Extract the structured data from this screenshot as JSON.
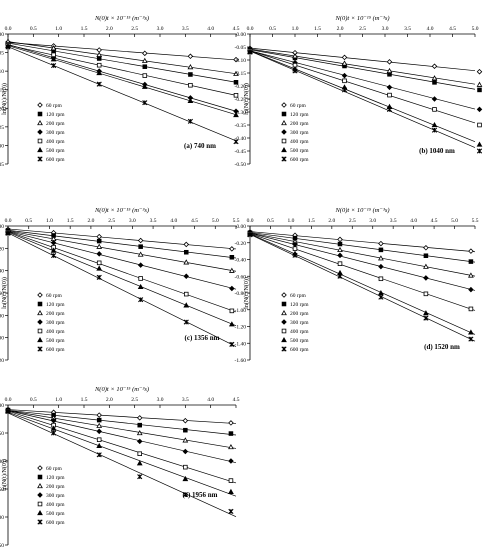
{
  "chart_data": [
    {
      "type": "scatter",
      "title": "(a) 740 nm",
      "xlabel": "N(0)t × 10⁻¹⁵ (m⁻³s)",
      "ylabel": "ln(N(t)/N(0))",
      "xlim": [
        0,
        4.5
      ],
      "ylim": [
        -0.35,
        0
      ],
      "xticks": [
        "0.0",
        "0.5",
        "1.0",
        "1.5",
        "2.0",
        "2.5",
        "3.0",
        "3.5",
        "4.0",
        "4.5"
      ],
      "yticks": [
        "0.00",
        "-0.05",
        "-0.10",
        "-0.15",
        "-0.20",
        "-0.25",
        "-0.30",
        "-0.35"
      ],
      "legend_position": "bottom-left",
      "series": [
        {
          "name": "60 rpm",
          "marker": "diamond-open",
          "x": [
            0.0,
            0.9,
            1.8,
            2.7,
            3.6,
            4.5
          ],
          "y": [
            -0.022,
            -0.032,
            -0.043,
            -0.052,
            -0.06,
            -0.069
          ]
        },
        {
          "name": "120 rpm",
          "marker": "square-filled",
          "x": [
            0.0,
            0.9,
            1.8,
            2.7,
            3.6,
            4.5
          ],
          "y": [
            -0.025,
            -0.045,
            -0.066,
            -0.088,
            -0.109,
            -0.13
          ]
        },
        {
          "name": "200 rpm",
          "marker": "triangle-open",
          "x": [
            0.0,
            0.9,
            1.8,
            2.7,
            3.6,
            4.5
          ],
          "y": [
            -0.02,
            -0.038,
            -0.056,
            -0.072,
            -0.089,
            -0.107
          ]
        },
        {
          "name": "300 rpm",
          "marker": "diamond-filled",
          "x": [
            0.0,
            0.9,
            1.8,
            2.7,
            3.6,
            4.5
          ],
          "y": [
            -0.028,
            -0.064,
            -0.1,
            -0.136,
            -0.172,
            -0.208
          ]
        },
        {
          "name": "400 rpm",
          "marker": "square-open",
          "x": [
            0.0,
            0.9,
            1.8,
            2.7,
            3.6,
            4.5
          ],
          "y": [
            -0.03,
            -0.056,
            -0.084,
            -0.112,
            -0.138,
            -0.165
          ]
        },
        {
          "name": "500 rpm",
          "marker": "triangle-filled",
          "x": [
            0.0,
            0.9,
            1.8,
            2.7,
            3.6,
            4.5
          ],
          "y": [
            -0.032,
            -0.068,
            -0.105,
            -0.142,
            -0.18,
            -0.218
          ]
        },
        {
          "name": "600 rpm",
          "marker": "x",
          "x": [
            0.0,
            0.9,
            1.8,
            2.7,
            3.6,
            4.5
          ],
          "y": [
            -0.035,
            -0.085,
            -0.135,
            -0.185,
            -0.235,
            -0.29
          ]
        }
      ]
    },
    {
      "type": "scatter",
      "title": "(b) 1040 nm",
      "xlabel": "N(0)t × 10⁻¹⁵ (m⁻³s)",
      "ylabel": "ln(N(t)/N(0))",
      "xlim": [
        0,
        5.0
      ],
      "ylim": [
        -0.5,
        0
      ],
      "xticks": [
        "0.0",
        "0.5",
        "1.0",
        "1.5",
        "2.0",
        "2.5",
        "3.0",
        "3.5",
        "4.0",
        "4.5",
        "5.0"
      ],
      "yticks": [
        "0.00",
        "-0.05",
        "-0.10",
        "-0.15",
        "-0.20",
        "-0.25",
        "-0.30",
        "-0.35",
        "-0.40",
        "-0.45",
        "-0.50"
      ],
      "legend_position": "bottom-left",
      "series": [
        {
          "name": "60 rpm",
          "marker": "diamond-open",
          "x": [
            0.0,
            1.0,
            2.1,
            3.1,
            4.1,
            5.1
          ],
          "y": [
            -0.055,
            -0.072,
            -0.09,
            -0.107,
            -0.124,
            -0.145
          ]
        },
        {
          "name": "120 rpm",
          "marker": "square-filled",
          "x": [
            0.0,
            1.0,
            2.1,
            3.1,
            4.1,
            5.1
          ],
          "y": [
            -0.06,
            -0.092,
            -0.123,
            -0.155,
            -0.186,
            -0.215
          ]
        },
        {
          "name": "200 rpm",
          "marker": "triangle-open",
          "x": [
            0.0,
            1.0,
            2.1,
            3.1,
            4.1,
            5.1
          ],
          "y": [
            -0.058,
            -0.085,
            -0.113,
            -0.142,
            -0.17,
            -0.195
          ]
        },
        {
          "name": "300 rpm",
          "marker": "diamond-filled",
          "x": [
            0.0,
            1.0,
            2.1,
            3.1,
            4.1,
            5.1
          ],
          "y": [
            -0.062,
            -0.11,
            -0.16,
            -0.205,
            -0.25,
            -0.29
          ]
        },
        {
          "name": "400 rpm",
          "marker": "square-open",
          "x": [
            0.0,
            1.0,
            2.1,
            3.1,
            4.1,
            5.1
          ],
          "y": [
            -0.065,
            -0.12,
            -0.18,
            -0.235,
            -0.29,
            -0.35
          ]
        },
        {
          "name": "500 rpm",
          "marker": "triangle-filled",
          "x": [
            0.0,
            1.0,
            2.1,
            3.1,
            4.1,
            5.1
          ],
          "y": [
            -0.068,
            -0.135,
            -0.205,
            -0.28,
            -0.35,
            -0.425
          ]
        },
        {
          "name": "600 rpm",
          "marker": "x",
          "x": [
            0.0,
            1.0,
            2.1,
            3.1,
            4.1,
            5.1
          ],
          "y": [
            -0.07,
            -0.142,
            -0.215,
            -0.29,
            -0.37,
            -0.45
          ]
        }
      ]
    },
    {
      "type": "scatter",
      "title": "(c) 1356 nm",
      "xlabel": "N(0)t × 10⁻¹⁵ (m⁻³s)",
      "ylabel": "ln(N(t)/N(0))",
      "xlim": [
        0,
        5.5
      ],
      "ylim": [
        -1.2,
        0
      ],
      "xticks": [
        "0.0",
        "0.5",
        "1.0",
        "1.5",
        "2.0",
        "2.5",
        "3.0",
        "3.5",
        "4.0",
        "4.5",
        "5.0",
        "5.5"
      ],
      "yticks": [
        "0.00",
        "-0.20",
        "-0.40",
        "-0.60",
        "-0.80",
        "-1.00",
        "-1.20"
      ],
      "legend_position": "bottom-left",
      "series": [
        {
          "name": "60 rpm",
          "marker": "diamond-open",
          "x": [
            0.0,
            1.1,
            2.2,
            3.2,
            4.3,
            5.4
          ],
          "y": [
            -0.03,
            -0.06,
            -0.095,
            -0.13,
            -0.165,
            -0.205
          ]
        },
        {
          "name": "120 rpm",
          "marker": "square-filled",
          "x": [
            0.0,
            1.1,
            2.2,
            3.2,
            4.3,
            5.4
          ],
          "y": [
            -0.04,
            -0.085,
            -0.135,
            -0.185,
            -0.235,
            -0.28
          ]
        },
        {
          "name": "200 rpm",
          "marker": "triangle-open",
          "x": [
            0.0,
            1.1,
            2.2,
            3.2,
            4.3,
            5.4
          ],
          "y": [
            -0.045,
            -0.115,
            -0.185,
            -0.255,
            -0.325,
            -0.4
          ]
        },
        {
          "name": "300 rpm",
          "marker": "diamond-filled",
          "x": [
            0.0,
            1.1,
            2.2,
            3.2,
            4.3,
            5.4
          ],
          "y": [
            -0.05,
            -0.15,
            -0.25,
            -0.35,
            -0.45,
            -0.56
          ]
        },
        {
          "name": "400 rpm",
          "marker": "square-open",
          "x": [
            0.0,
            1.1,
            2.2,
            3.2,
            4.3,
            5.4
          ],
          "y": [
            -0.055,
            -0.19,
            -0.33,
            -0.47,
            -0.61,
            -0.76
          ]
        },
        {
          "name": "500 rpm",
          "marker": "triangle-filled",
          "x": [
            0.0,
            1.1,
            2.2,
            3.2,
            4.3,
            5.4
          ],
          "y": [
            -0.06,
            -0.22,
            -0.38,
            -0.545,
            -0.71,
            -0.88
          ]
        },
        {
          "name": "600 rpm",
          "marker": "x",
          "x": [
            0.0,
            1.1,
            2.2,
            3.2,
            4.3,
            5.4
          ],
          "y": [
            -0.065,
            -0.265,
            -0.46,
            -0.66,
            -0.86,
            -1.06
          ]
        }
      ]
    },
    {
      "type": "scatter",
      "title": "(d) 1520 nm",
      "xlabel": "N(0)t × 10⁻¹⁵ (m⁻³s)",
      "ylabel": "ln(N(t)/N(0))",
      "xlim": [
        0,
        5.5
      ],
      "ylim": [
        -1.6,
        0
      ],
      "xticks": [
        "0.0",
        "0.5",
        "1.0",
        "1.5",
        "2.0",
        "2.5",
        "3.0",
        "3.5",
        "4.0",
        "4.5",
        "5.0",
        "5.5"
      ],
      "yticks": [
        "0.00",
        "-0.20",
        "-0.40",
        "-0.60",
        "-0.80",
        "-1.00",
        "-1.20",
        "-1.40",
        "-1.60"
      ],
      "legend_position": "bottom-left",
      "series": [
        {
          "name": "60 rpm",
          "marker": "diamond-open",
          "x": [
            0.0,
            1.1,
            2.2,
            3.2,
            4.3,
            5.4
          ],
          "y": [
            -0.07,
            -0.11,
            -0.16,
            -0.21,
            -0.26,
            -0.3
          ]
        },
        {
          "name": "120 rpm",
          "marker": "square-filled",
          "x": [
            0.0,
            1.1,
            2.2,
            3.2,
            4.3,
            5.4
          ],
          "y": [
            -0.08,
            -0.145,
            -0.215,
            -0.285,
            -0.355,
            -0.425
          ]
        },
        {
          "name": "200 rpm",
          "marker": "triangle-open",
          "x": [
            0.0,
            1.1,
            2.2,
            3.2,
            4.3,
            5.4
          ],
          "y": [
            -0.085,
            -0.185,
            -0.285,
            -0.385,
            -0.485,
            -0.59
          ]
        },
        {
          "name": "300 rpm",
          "marker": "diamond-filled",
          "x": [
            0.0,
            1.1,
            2.2,
            3.2,
            4.3,
            5.4
          ],
          "y": [
            -0.09,
            -0.22,
            -0.35,
            -0.485,
            -0.62,
            -0.76
          ]
        },
        {
          "name": "400 rpm",
          "marker": "square-open",
          "x": [
            0.0,
            1.1,
            2.2,
            3.2,
            4.3,
            5.4
          ],
          "y": [
            -0.095,
            -0.27,
            -0.45,
            -0.63,
            -0.81,
            -0.99
          ]
        },
        {
          "name": "500 rpm",
          "marker": "triangle-filled",
          "x": [
            0.0,
            1.1,
            2.2,
            3.2,
            4.3,
            5.4
          ],
          "y": [
            -0.1,
            -0.33,
            -0.56,
            -0.8,
            -1.04,
            -1.27
          ]
        },
        {
          "name": "600 rpm",
          "marker": "x",
          "x": [
            0.0,
            1.1,
            2.2,
            3.2,
            4.3,
            5.4
          ],
          "y": [
            -0.105,
            -0.35,
            -0.6,
            -0.85,
            -1.1,
            -1.35
          ]
        }
      ]
    },
    {
      "type": "scatter",
      "title": "(e) 1956 nm",
      "xlabel": "N(0)t × 10⁻¹⁵ (m⁻³s)",
      "ylabel": "ln(N(t)/N(0))",
      "xlim": [
        0,
        4.5
      ],
      "ylim": [
        -2.5,
        0
      ],
      "xticks": [
        "0.0",
        "0.5",
        "1.0",
        "1.5",
        "2.0",
        "2.5",
        "3.0",
        "3.5",
        "4.0",
        "4.5"
      ],
      "yticks": [
        "0.00",
        "-0.50",
        "-1.00",
        "-1.50",
        "-2.00",
        "-2.50"
      ],
      "legend_position": "bottom-left",
      "series": [
        {
          "name": "60 rpm",
          "marker": "diamond-open",
          "x": [
            0.0,
            0.9,
            1.8,
            2.6,
            3.5,
            4.4
          ],
          "y": [
            -0.08,
            -0.13,
            -0.18,
            -0.23,
            -0.28,
            -0.32
          ]
        },
        {
          "name": "120 rpm",
          "marker": "square-filled",
          "x": [
            0.0,
            0.9,
            1.8,
            2.6,
            3.5,
            4.4
          ],
          "y": [
            -0.09,
            -0.18,
            -0.27,
            -0.36,
            -0.45,
            -0.51
          ]
        },
        {
          "name": "200 rpm",
          "marker": "triangle-open",
          "x": [
            0.0,
            0.9,
            1.8,
            2.6,
            3.5,
            4.4
          ],
          "y": [
            -0.095,
            -0.23,
            -0.37,
            -0.5,
            -0.63,
            -0.75
          ]
        },
        {
          "name": "300 rpm",
          "marker": "diamond-filled",
          "x": [
            0.0,
            0.9,
            1.8,
            2.6,
            3.5,
            4.4
          ],
          "y": [
            -0.1,
            -0.28,
            -0.47,
            -0.65,
            -0.83,
            -1.0
          ]
        },
        {
          "name": "400 rpm",
          "marker": "square-open",
          "x": [
            0.0,
            0.9,
            1.8,
            2.6,
            3.5,
            4.4
          ],
          "y": [
            -0.105,
            -0.36,
            -0.62,
            -0.87,
            -1.11,
            -1.35
          ]
        },
        {
          "name": "500 rpm",
          "marker": "triangle-filled",
          "x": [
            0.0,
            0.9,
            1.8,
            2.6,
            3.5,
            4.4
          ],
          "y": [
            -0.11,
            -0.42,
            -0.73,
            -1.04,
            -1.32,
            -1.55
          ]
        },
        {
          "name": "600 rpm",
          "marker": "x",
          "x": [
            0.0,
            0.9,
            1.8,
            2.6,
            3.5,
            4.4
          ],
          "y": [
            -0.115,
            -0.5,
            -0.89,
            -1.28,
            -1.6,
            -1.9
          ]
        }
      ]
    }
  ]
}
